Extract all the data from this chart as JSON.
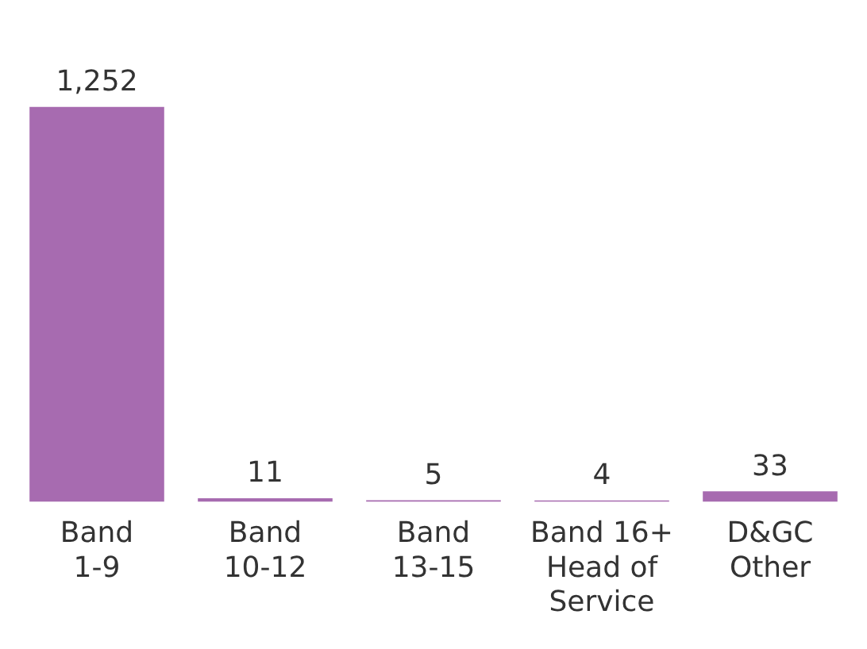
{
  "chart_data": {
    "type": "bar",
    "categories": [
      "Band\n1-9",
      "Band\n10-12",
      "Band\n13-15",
      "Band 16+\nHead of\nService",
      "D&GC\nOther"
    ],
    "values": [
      1252,
      11,
      5,
      4,
      33
    ],
    "value_labels": [
      "1,252",
      "11",
      "5",
      "4",
      "33"
    ],
    "color": "#a76bb0",
    "grid": false,
    "legend": false
  }
}
